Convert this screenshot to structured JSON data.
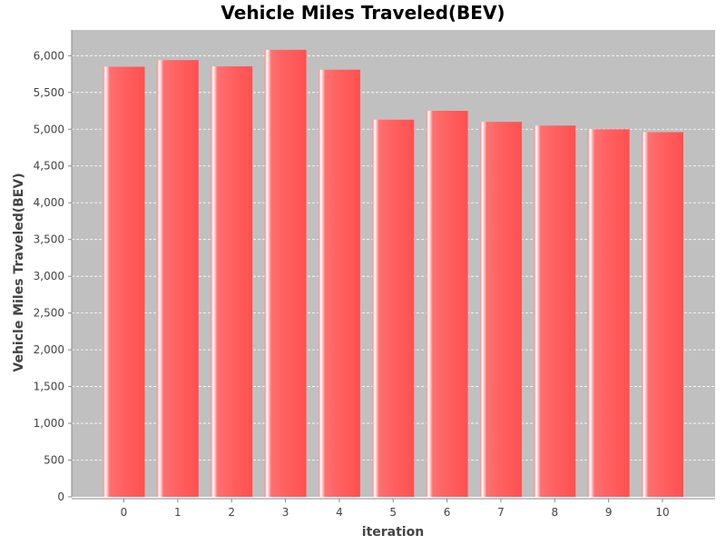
{
  "chart_data": {
    "type": "bar",
    "title": "Vehicle Miles Traveled(BEV)",
    "xlabel": "iteration",
    "ylabel": "Vehicle Miles Traveled(BEV)",
    "categories": [
      "0",
      "1",
      "2",
      "3",
      "4",
      "5",
      "6",
      "7",
      "8",
      "9",
      "10"
    ],
    "values": [
      5850,
      5940,
      5855,
      6080,
      5810,
      5130,
      5250,
      5100,
      5050,
      5000,
      4960
    ],
    "ylim": [
      0,
      6350
    ],
    "yticks": [
      0,
      500,
      1000,
      1500,
      2000,
      2500,
      3000,
      3500,
      4000,
      4500,
      5000,
      5500,
      6000
    ],
    "ytick_labels": [
      "0",
      "500",
      "1,000",
      "1,500",
      "2,000",
      "2,500",
      "3,000",
      "3,500",
      "4,000",
      "4,500",
      "5,000",
      "5,500",
      "6,000"
    ],
    "grid": true,
    "legend": false,
    "colors": {
      "bar": "#ff5555",
      "bar_highlight": "#ffffff",
      "plot_background": "#c0c0c0",
      "gridline": "#ffffff"
    }
  }
}
